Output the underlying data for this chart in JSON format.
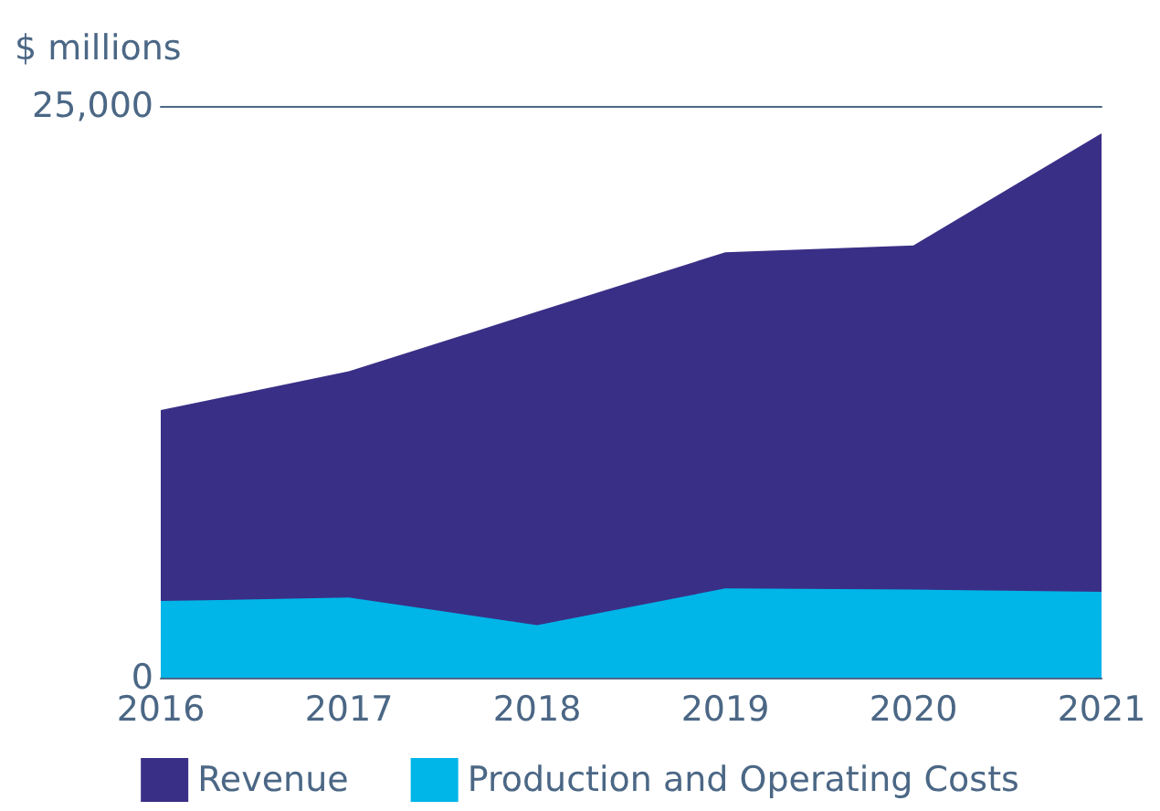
{
  "chart_data": {
    "type": "area",
    "ylabel": "$ millions",
    "categories": [
      "2016",
      "2017",
      "2018",
      "2019",
      "2020",
      "2021"
    ],
    "series": [
      {
        "name": "Revenue",
        "color": "#3a2f86",
        "values": [
          11700,
          13400,
          16000,
          18600,
          18900,
          23800
        ]
      },
      {
        "name": "Production and Operating Costs",
        "color": "#00b5e8",
        "values": [
          3350,
          3500,
          2300,
          3900,
          3850,
          3750
        ]
      }
    ],
    "ylim": [
      0,
      25000
    ],
    "yticks": [
      0,
      {
        "value": 25000,
        "label": "25,000"
      }
    ],
    "legend": "bottom"
  }
}
